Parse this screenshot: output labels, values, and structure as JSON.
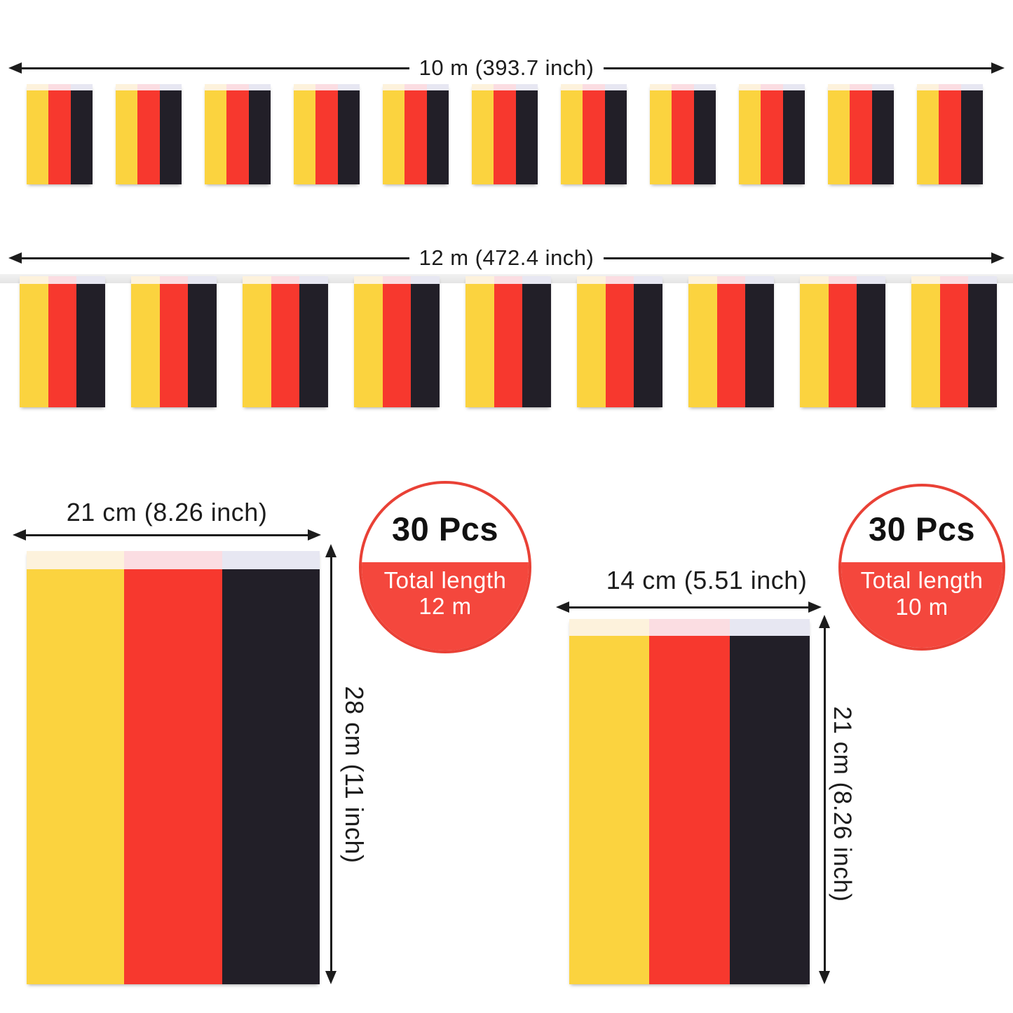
{
  "page": {
    "background": "#ffffff"
  },
  "colors": {
    "flag_yellow": "#FBD33F",
    "flag_red": "#F7382E",
    "flag_black": "#221F28",
    "sleeve_over_yellow": "#FDF2DC",
    "sleeve_over_red": "#FBDDE2",
    "sleeve_over_black": "#E7E7F2",
    "badge_red": "#F4473D",
    "badge_border": "#E94136",
    "string_gray": "#F2F2F2",
    "annotation_black": "#1C1C1C"
  },
  "string_10m": {
    "measurement": "10 m (393.7 inch)",
    "flag_count": 11
  },
  "string_12m": {
    "measurement": "12 m (472.4 inch)",
    "flag_count": 9
  },
  "large_flag": {
    "width_label": "21 cm (8.26 inch)",
    "height_label": "28 cm (11 inch)"
  },
  "small_flag": {
    "width_label": "14 cm (5.51 inch)",
    "height_label": "21 cm (8.26 inch)"
  },
  "badge_12m": {
    "pieces_label": "30 Pcs",
    "total_label_line1": "Total length",
    "total_label_line2": "12 m"
  },
  "badge_10m": {
    "pieces_label": "30 Pcs",
    "total_label_line1": "Total length",
    "total_label_line2": "10 m"
  }
}
